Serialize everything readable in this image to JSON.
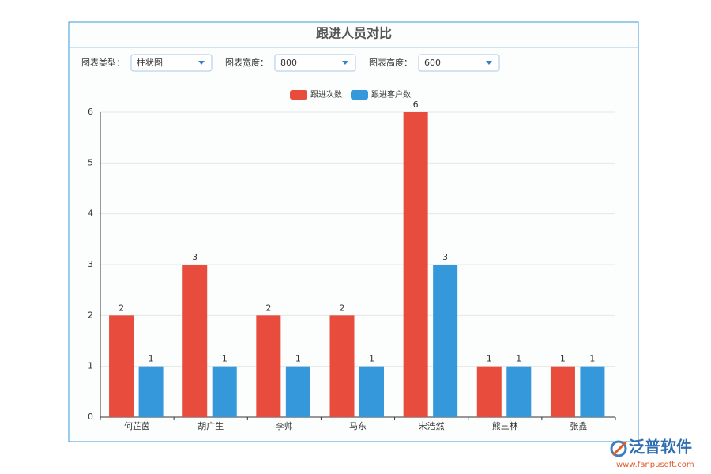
{
  "panel": {
    "title": "跟进人员对比"
  },
  "controls": [
    {
      "label": "图表类型：",
      "value": "柱状图"
    },
    {
      "label": "图表宽度：",
      "value": "800"
    },
    {
      "label": "图表高度：",
      "value": "600"
    }
  ],
  "chart_data": {
    "type": "bar",
    "categories": [
      "何芷茵",
      "胡广生",
      "李帅",
      "马东",
      "宋浩然",
      "熊三林",
      "张鑫"
    ],
    "series": [
      {
        "name": "跟进次数",
        "color": "#e74c3c",
        "values": [
          2,
          3,
          2,
          2,
          6,
          1,
          1
        ]
      },
      {
        "name": "跟进客户数",
        "color": "#3498db",
        "values": [
          1,
          1,
          1,
          1,
          3,
          1,
          1
        ]
      }
    ],
    "ylim": [
      0,
      6
    ],
    "yticks": [
      0,
      1,
      2,
      3,
      4,
      5,
      6
    ],
    "grid": true,
    "legend": "top"
  },
  "watermark": {
    "brand": "泛普软件",
    "url": "www.fanpusoft.com"
  }
}
